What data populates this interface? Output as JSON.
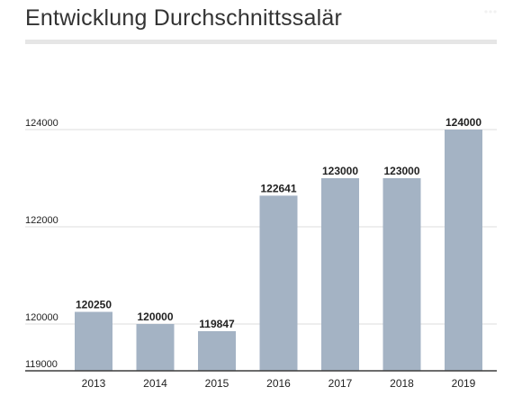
{
  "title": "Entwicklung Durchschnittssalär",
  "colors": {
    "bar": "#a4b3c4",
    "axis": "#3c3c3c",
    "grid": "#dcdcdc",
    "text": "#222222",
    "title": "#333333",
    "title_rule": "#e6e6e6"
  },
  "chart_data": {
    "type": "bar",
    "title": "Entwicklung Durchschnittssalär",
    "categories": [
      "2013",
      "2014",
      "2015",
      "2016",
      "2017",
      "2018",
      "2019"
    ],
    "values": [
      120250,
      120000,
      119847,
      122641,
      123000,
      123000,
      124000
    ],
    "data_labels": [
      "120250",
      "120000",
      "119847",
      "122641",
      "123000",
      "123000",
      "124000"
    ],
    "y_ticks": [
      119000,
      120000,
      122000,
      124000
    ],
    "y_tick_labels": [
      "119000",
      "120000",
      "122000",
      "124000"
    ],
    "ylim": [
      119000,
      124000
    ],
    "xlabel": "",
    "ylabel": "",
    "grid": true,
    "legend": "none"
  }
}
